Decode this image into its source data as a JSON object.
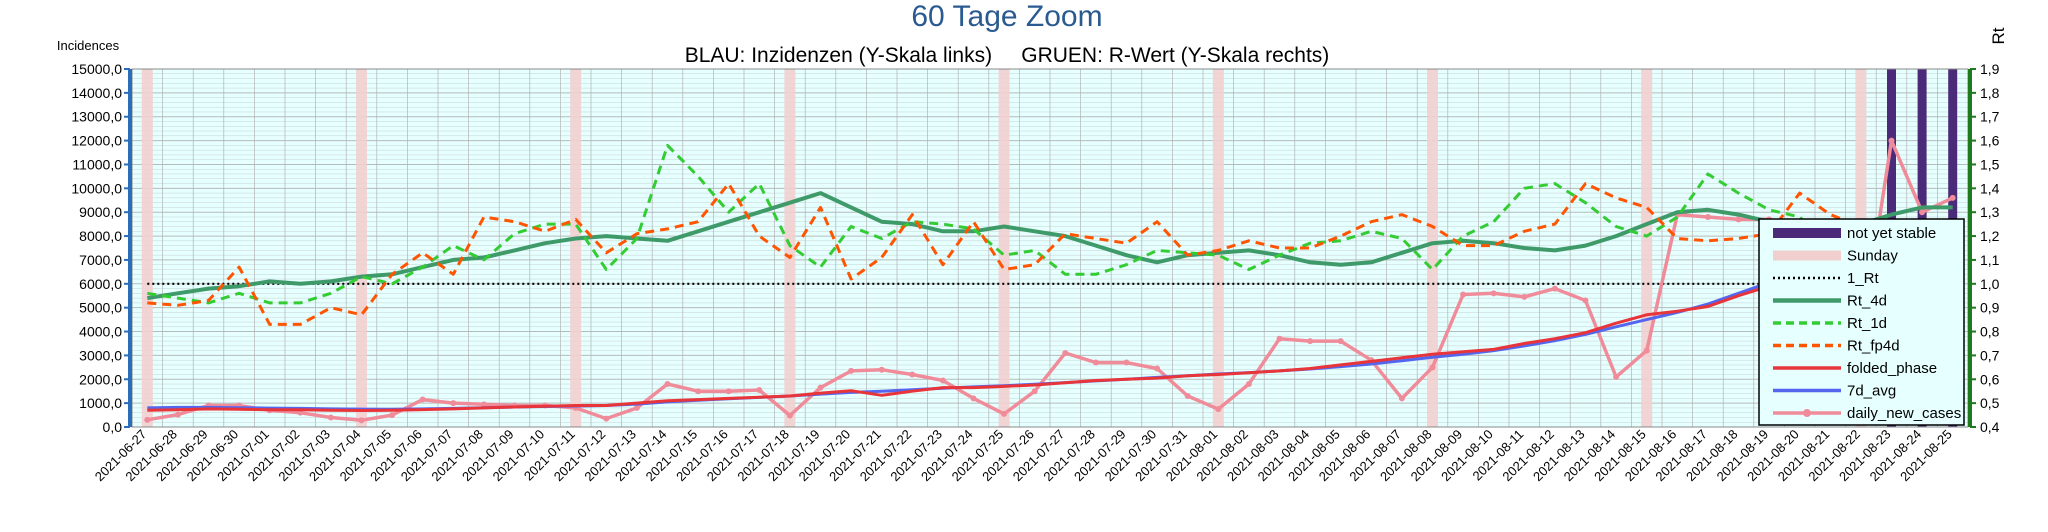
{
  "chart_data": {
    "type": "line",
    "title": "60 Tage Zoom",
    "subtitle": "BLAU: Inzidenzen (Y-Skala links)     GRUEN: R-Wert (Y-Skala rechts)",
    "ylabel_left": "Incidences",
    "ylabel_right": "Rt",
    "ylim_left": [
      0,
      15000
    ],
    "ylim_right": [
      0.4,
      1.9
    ],
    "grid": true,
    "legend_position": "right",
    "colors": {
      "plot_background": "#e6ffff",
      "grid": "#b3b3b3",
      "left_axis": "#2a6ebb",
      "right_axis": "#1f7a1f",
      "title": "#2a5a8f",
      "legend_background": "#e6ffff"
    },
    "x": [
      "2021-06-27",
      "2021-06-28",
      "2021-06-29",
      "2021-06-30",
      "2021-07-01",
      "2021-07-02",
      "2021-07-03",
      "2021-07-04",
      "2021-07-05",
      "2021-07-06",
      "2021-07-07",
      "2021-07-08",
      "2021-07-09",
      "2021-07-10",
      "2021-07-11",
      "2021-07-12",
      "2021-07-13",
      "2021-07-14",
      "2021-07-15",
      "2021-07-16",
      "2021-07-17",
      "2021-07-18",
      "2021-07-19",
      "2021-07-20",
      "2021-07-21",
      "2021-07-22",
      "2021-07-23",
      "2021-07-24",
      "2021-07-25",
      "2021-07-26",
      "2021-07-27",
      "2021-07-28",
      "2021-07-29",
      "2021-07-30",
      "2021-07-31",
      "2021-08-01",
      "2021-08-02",
      "2021-08-03",
      "2021-08-04",
      "2021-08-05",
      "2021-08-06",
      "2021-08-07",
      "2021-08-08",
      "2021-08-09",
      "2021-08-10",
      "2021-08-11",
      "2021-08-12",
      "2021-08-13",
      "2021-08-14",
      "2021-08-15",
      "2021-08-16",
      "2021-08-17",
      "2021-08-18",
      "2021-08-19",
      "2021-08-20",
      "2021-08-21",
      "2021-08-22",
      "2021-08-23",
      "2021-08-24",
      "2021-08-25"
    ],
    "left_ticks": [
      "0,0",
      "1000,0",
      "2000,0",
      "3000,0",
      "4000,0",
      "5000,0",
      "6000,0",
      "7000,0",
      "8000,0",
      "9000,0",
      "10000,0",
      "11000,0",
      "12000,0",
      "13000,0",
      "14000,0",
      "15000,0"
    ],
    "right_ticks": [
      "0,4",
      "0,5",
      "0,6",
      "0,7",
      "0,8",
      "0,9",
      "1,0",
      "1,1",
      "1,2",
      "1,3",
      "1,4",
      "1,5",
      "1,6",
      "1,7",
      "1,8",
      "1,9"
    ],
    "series": [
      {
        "name": "not yet stable",
        "kind": "bars",
        "color": "#4b2a7a",
        "dates": [
          "2021-08-23",
          "2021-08-24",
          "2021-08-25"
        ]
      },
      {
        "name": "Sunday",
        "kind": "bars",
        "color": "#f2cfcf",
        "dates": [
          "2021-06-27",
          "2021-07-04",
          "2021-07-11",
          "2021-07-18",
          "2021-07-25",
          "2021-08-01",
          "2021-08-08",
          "2021-08-15",
          "2021-08-22"
        ]
      },
      {
        "name": "1_Rt",
        "axis": "right",
        "style": "dotted",
        "color": "#000000",
        "values": [
          1.0,
          1.0,
          1.0,
          1.0,
          1.0,
          1.0,
          1.0,
          1.0,
          1.0,
          1.0,
          1.0,
          1.0,
          1.0,
          1.0,
          1.0,
          1.0,
          1.0,
          1.0,
          1.0,
          1.0,
          1.0,
          1.0,
          1.0,
          1.0,
          1.0,
          1.0,
          1.0,
          1.0,
          1.0,
          1.0,
          1.0,
          1.0,
          1.0,
          1.0,
          1.0,
          1.0,
          1.0,
          1.0,
          1.0,
          1.0,
          1.0,
          1.0,
          1.0,
          1.0,
          1.0,
          1.0,
          1.0,
          1.0,
          1.0,
          1.0,
          1.0,
          1.0,
          1.0,
          1.0,
          1.0,
          1.0,
          1.0,
          1.0,
          1.0,
          1.0
        ]
      },
      {
        "name": "Rt_4d",
        "axis": "right",
        "style": "solid-thick",
        "color": "#3f9a6a",
        "values": [
          0.94,
          0.96,
          0.98,
          0.99,
          1.01,
          1.0,
          1.01,
          1.03,
          1.04,
          1.07,
          1.1,
          1.11,
          1.14,
          1.17,
          1.19,
          1.2,
          1.19,
          1.18,
          1.22,
          1.26,
          1.3,
          1.34,
          1.38,
          1.32,
          1.26,
          1.25,
          1.22,
          1.22,
          1.24,
          1.22,
          1.2,
          1.16,
          1.12,
          1.09,
          1.12,
          1.13,
          1.14,
          1.12,
          1.09,
          1.08,
          1.09,
          1.13,
          1.17,
          1.18,
          1.17,
          1.15,
          1.14,
          1.16,
          1.2,
          1.25,
          1.3,
          1.31,
          1.29,
          1.26,
          1.22,
          1.23,
          1.25,
          1.29,
          1.32,
          1.32
        ]
      },
      {
        "name": "Rt_1d",
        "axis": "right",
        "style": "dashed",
        "color": "#33cc33",
        "values": [
          0.96,
          0.94,
          0.92,
          0.96,
          0.92,
          0.92,
          0.96,
          1.03,
          1.0,
          1.07,
          1.16,
          1.1,
          1.21,
          1.25,
          1.25,
          1.06,
          1.19,
          1.58,
          1.45,
          1.3,
          1.42,
          1.16,
          1.07,
          1.24,
          1.19,
          1.26,
          1.25,
          1.23,
          1.12,
          1.14,
          1.04,
          1.04,
          1.08,
          1.14,
          1.13,
          1.12,
          1.06,
          1.12,
          1.17,
          1.18,
          1.22,
          1.19,
          1.06,
          1.2,
          1.26,
          1.4,
          1.42,
          1.34,
          1.24,
          1.2,
          1.28,
          1.46,
          1.38,
          1.31,
          1.28,
          1.15,
          1.05,
          1.18,
          1.26,
          1.12
        ]
      },
      {
        "name": "Rt_fp4d",
        "axis": "right",
        "style": "dashed",
        "color": "#ff5500",
        "values": [
          0.92,
          0.91,
          0.93,
          1.07,
          0.83,
          0.83,
          0.9,
          0.87,
          1.04,
          1.13,
          1.04,
          1.28,
          1.26,
          1.22,
          1.27,
          1.13,
          1.21,
          1.23,
          1.26,
          1.42,
          1.2,
          1.11,
          1.32,
          1.02,
          1.11,
          1.29,
          1.08,
          1.26,
          1.06,
          1.08,
          1.21,
          1.19,
          1.17,
          1.26,
          1.12,
          1.14,
          1.18,
          1.15,
          1.15,
          1.2,
          1.26,
          1.29,
          1.24,
          1.16,
          1.16,
          1.22,
          1.25,
          1.42,
          1.36,
          1.32,
          1.19,
          1.18,
          1.19,
          1.21,
          1.38,
          1.29,
          1.24,
          1.2,
          1.23,
          1.08
        ]
      },
      {
        "name": "folded_phase",
        "axis": "left",
        "style": "solid",
        "color": "#e8353a",
        "values": [
          700,
          720,
          760,
          740,
          720,
          720,
          700,
          690,
          700,
          730,
          760,
          800,
          840,
          870,
          900,
          900,
          1000,
          1100,
          1150,
          1200,
          1250,
          1300,
          1420,
          1520,
          1330,
          1500,
          1650,
          1650,
          1700,
          1760,
          1850,
          1950,
          2000,
          2050,
          2150,
          2200,
          2270,
          2350,
          2450,
          2600,
          2750,
          2900,
          3050,
          3150,
          3250,
          3500,
          3700,
          3950,
          4350,
          4700,
          4850,
          5050,
          5500,
          5900,
          6300,
          6550,
          6800,
          6900,
          7150,
          6900
        ]
      },
      {
        "name": "7d_avg",
        "axis": "left",
        "style": "solid",
        "color": "#5566ee",
        "values": [
          800,
          820,
          820,
          810,
          790,
          780,
          760,
          750,
          740,
          760,
          780,
          810,
          840,
          860,
          880,
          900,
          960,
          1050,
          1120,
          1180,
          1240,
          1300,
          1380,
          1450,
          1500,
          1560,
          1620,
          1680,
          1730,
          1790,
          1860,
          1930,
          2000,
          2080,
          2150,
          2220,
          2280,
          2350,
          2430,
          2530,
          2640,
          2780,
          2920,
          3050,
          3200,
          3400,
          3620,
          3880,
          4200,
          4500,
          4800,
          5150,
          5600,
          6050,
          6450,
          6800,
          7100,
          7300,
          7600,
          7750
        ]
      },
      {
        "name": "daily_new_cases",
        "axis": "left",
        "style": "solid-marker",
        "color": "#f08c9a",
        "values": [
          300,
          520,
          900,
          900,
          700,
          600,
          400,
          280,
          500,
          1150,
          1000,
          950,
          900,
          900,
          800,
          350,
          800,
          1800,
          1500,
          1500,
          1550,
          480,
          1650,
          2350,
          2400,
          2200,
          1950,
          1200,
          550,
          1500,
          3100,
          2700,
          2700,
          2450,
          1300,
          750,
          1800,
          3700,
          3600,
          3600,
          2800,
          1200,
          2500,
          5550,
          5600,
          5450,
          5800,
          5300,
          2100,
          3200,
          8900,
          8800,
          8700,
          8700,
          7400,
          650,
          3700,
          12000,
          9000,
          9600
        ]
      }
    ]
  }
}
